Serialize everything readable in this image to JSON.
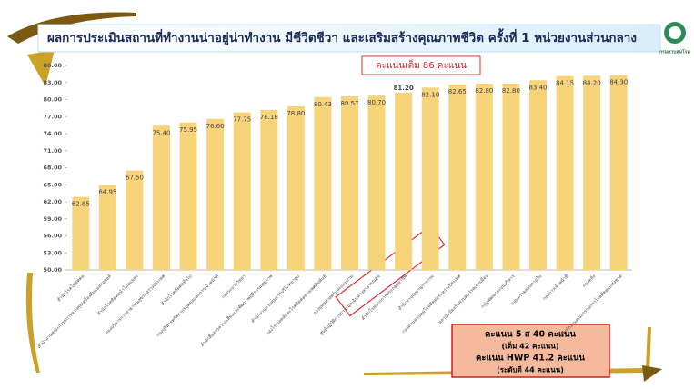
{
  "chart_data": {
    "type": "bar",
    "title": "ผลการประเมินสถานที่ทำงานน่าอยู่น่าทำงาน มีชีวิตชีวา และเสริมสร้างคุณภาพชีวิต ครั้งที่ 1 หน่วยงานส่วนกลาง",
    "logo_text": "กรมควบคุมโรค",
    "annotation": "คะแนนเต็ม 86 คะแนน",
    "summary": [
      "คะแนน 5 ส 40 คะแนน",
      "(เต็ม 42 คะแนน)",
      "คะแนน HWP 41.2 คะแนน",
      "(ระดับดี  44 คะแนน)"
    ],
    "categories": [
      "สำนักโรคไม่ติดต่อ",
      "สำนักงานคณะกรรมการควบคุมเครื่องดื่มแอลกอฮอล์",
      "สำนักโรคติดต่อนำโดยแมลง",
      "กองบริหารการสาธารณสุขระหว่างประเทศ",
      "สำนักโรคติดต่อทั่วไป",
      "กองบริหารทรัพยากรบุคคลและการเจ้าหน้าที่",
      "กองระบาดวิทยา",
      "สำนักสื่อสารความเสี่ยงและพัฒนาพฤติกรรมสุขภาพ",
      "สำนักงานควบคุมการบริโภคยาสูบ",
      "กองโรคเอดส์และโรคติดต่อทางเพศสัมพันธ์",
      "กองยุทธศาสตร์และแผนงาน",
      "ศูนย์ปฏิบัติการภาวะฉุกเฉินทางสาธารณสุข",
      "สำนักโรคจากการประกอบอาชีพ",
      "สำนักงานเลขานุการกรม",
      "กองด่านควบคุมโรคติดต่อระหว่างประเทศ",
      "สถาบันป้องกันควบคุมโรคเขตเมือง",
      "กลุ่มพัฒนาระบบบริหาร",
      "กลุ่มตรวจสอบภายใน",
      "กองการเจ้าหน้าที่",
      "กองคลัง",
      "สำนักงานคณะกรรมการโรคติดต่อแห่งชาติ"
    ],
    "values": [
      62.85,
      64.95,
      67.5,
      75.4,
      75.95,
      76.6,
      77.75,
      78.18,
      78.8,
      80.43,
      80.57,
      80.7,
      81.2,
      82.1,
      82.65,
      82.8,
      82.8,
      83.4,
      84.15,
      84.2,
      84.3
    ],
    "value_labels": [
      "62.85",
      "64.95",
      "67.50",
      "75.40",
      "75.95",
      "76.60",
      "77.75",
      "78.18",
      "78.80",
      "80.43",
      "80.57",
      "80.70",
      "81.20",
      "82.10",
      "82.65",
      "82.80",
      "82.80",
      "83.40",
      "84.15",
      "84.20",
      "84.30"
    ],
    "color": "#f7d37a",
    "highlight": 12,
    "highlight_color": "#c00000",
    "ylim": [
      50,
      86
    ],
    "yticks": [
      {
        "value": 50,
        "label": "50.00"
      },
      {
        "value": 53,
        "label": "53.00"
      },
      {
        "value": 56,
        "label": "56.00"
      },
      {
        "value": 59,
        "label": "59.00"
      },
      {
        "value": 62,
        "label": "62.00"
      },
      {
        "value": 65,
        "label": "65.00"
      },
      {
        "value": 68,
        "label": "68.00"
      },
      {
        "value": 71,
        "label": "71.00"
      },
      {
        "value": 74,
        "label": "74.00"
      },
      {
        "value": 77,
        "label": "77.00"
      },
      {
        "value": 80,
        "label": "80.00"
      },
      {
        "value": 83,
        "label": "83.00"
      },
      {
        "value": 86,
        "label": "86.00"
      }
    ],
    "grid": false
  }
}
